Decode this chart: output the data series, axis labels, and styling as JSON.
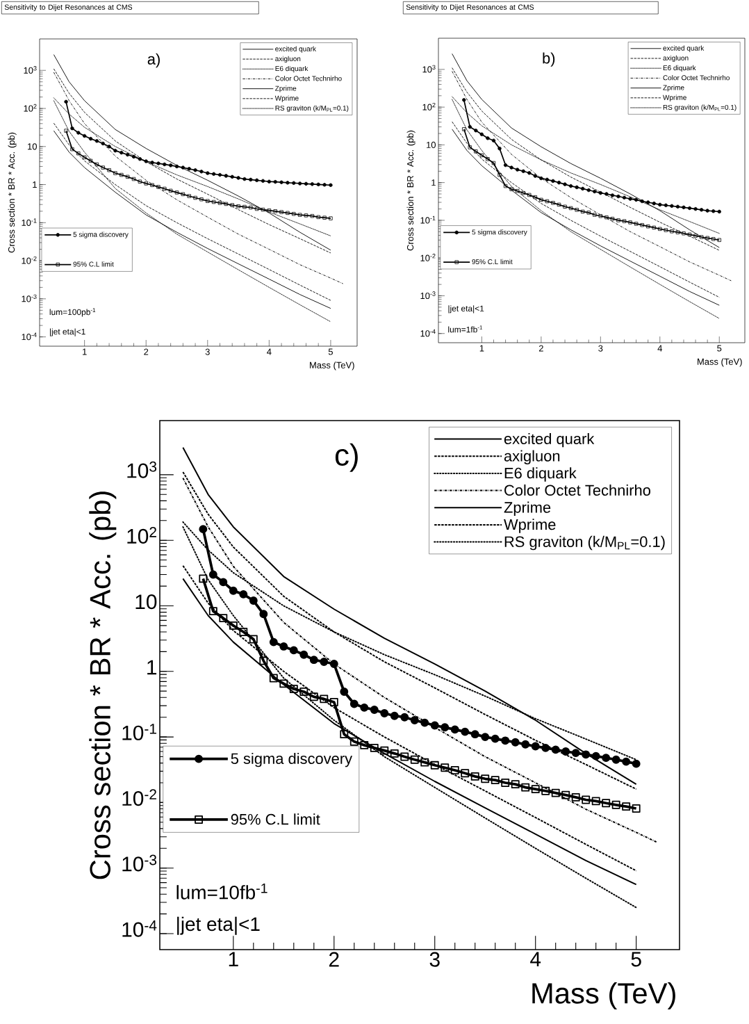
{
  "chart_data": [
    {
      "type": "line",
      "title": "Sensitivity to Dijet Resonances at CMS",
      "xlabel": "Mass (TeV)",
      "ylabel": "Cross section * BR * Acc. (pb)",
      "log": "y",
      "legend": "top right",
      "xlim": [
        0.27,
        5.43
      ],
      "ylim": [
        5.7e-05,
        6700
      ],
      "xticks": [
        1,
        2,
        3,
        4,
        5
      ],
      "yticks": [
        {
          "value": 0.0001,
          "label": "10$^{-4}$"
        },
        {
          "value": 0.001,
          "label": "10$^{-3}$"
        },
        {
          "value": 0.01,
          "label": "10$^{-2}$"
        },
        {
          "value": 0.1,
          "label": "10$^{-1}$"
        },
        1,
        10,
        {
          "value": 100,
          "label": "10$^{2}$"
        },
        {
          "value": 1000,
          "label": "10$^{3}$"
        }
      ],
      "annotations": [
        "a)",
        "lum=100pb$^{-1}$",
        "|jet eta|<1"
      ],
      "series": [
        {
          "name": "excited quark",
          "color": "#000000",
          "line_style": "solid",
          "marker": "none",
          "x": [
            0.5,
            0.75,
            1,
            1.5,
            2,
            2.5,
            3,
            3.5,
            4,
            4.5,
            5
          ],
          "values": [
            2600,
            500,
            160,
            28,
            8.9,
            3.2,
            1.3,
            0.5,
            0.18,
            0.056,
            0.019
          ]
        },
        {
          "name": "axigluon",
          "color": "#000000",
          "line_style": "dashed",
          "marker": "none",
          "x": [
            0.5,
            0.75,
            1,
            1.5,
            2,
            2.5,
            3,
            3.5,
            4,
            4.5,
            5
          ],
          "values": [
            1100,
            250,
            79,
            14,
            4.0,
            1.4,
            0.56,
            0.22,
            0.089,
            0.038,
            0.016
          ]
        },
        {
          "name": "E6 diquark",
          "color": "#000000",
          "line_style": "dotted",
          "marker": "none",
          "x": [
            0.5,
            0.75,
            1,
            1.5,
            2,
            2.5,
            3,
            3.5,
            4,
            4.5,
            5
          ],
          "values": [
            190,
            71,
            32,
            10,
            4.0,
            1.8,
            0.89,
            0.42,
            0.19,
            0.093,
            0.045
          ]
        },
        {
          "name": "Color Octet Technirho",
          "color": "#000000",
          "line_style": "dashdot",
          "marker": "none",
          "x": [
            0.5,
            0.75,
            1,
            1.5,
            2,
            2.5,
            3,
            3.5,
            4,
            4.5,
            5,
            5.2
          ],
          "values": [
            890,
            160,
            40,
            5.6,
            1.3,
            0.4,
            0.14,
            0.05,
            0.02,
            0.0079,
            0.0035,
            0.0025
          ]
        },
        {
          "name": "Zprime",
          "color": "#000000",
          "line_style": "solid",
          "marker": "none",
          "x": [
            0.5,
            0.75,
            1,
            1.5,
            2,
            2.5,
            3,
            3.5,
            4,
            4.5,
            5
          ],
          "values": [
            26,
            7.1,
            2.8,
            0.63,
            0.16,
            0.056,
            0.021,
            0.0083,
            0.0033,
            0.0013,
            0.00056
          ]
        },
        {
          "name": "Wprime",
          "color": "#000000",
          "line_style": "dashed",
          "marker": "none",
          "x": [
            0.5,
            0.75,
            1,
            1.5,
            2,
            2.5,
            3,
            3.5,
            4,
            4.5,
            5
          ],
          "values": [
            41,
            11,
            4.2,
            1.0,
            0.28,
            0.1,
            0.038,
            0.015,
            0.0059,
            0.0023,
            0.00091
          ]
        },
        {
          "name": "RS graviton (k/M$_{PL}$=0.1)",
          "color": "#000000",
          "line_style": "dotted",
          "marker": "none",
          "x": [
            0.5,
            0.75,
            1,
            1.5,
            2,
            2.5,
            3,
            3.5,
            4,
            4.5,
            5
          ],
          "values": [
            160,
            25,
            7.1,
            0.79,
            0.18,
            0.05,
            0.017,
            0.0058,
            0.002,
            0.0007,
            0.00025
          ]
        },
        {
          "name": "5 sigma discovery",
          "color": "#000000",
          "line_style": "solid",
          "marker": "circle",
          "x": [
            0.7,
            0.8,
            0.9,
            1.0,
            1.1,
            1.2,
            1.3,
            1.4,
            1.5,
            1.6,
            1.7,
            1.8,
            1.9,
            2.0,
            2.1,
            2.2,
            2.3,
            2.4,
            2.5,
            2.6,
            2.7,
            2.8,
            2.9,
            3.0,
            3.1,
            3.2,
            3.3,
            3.4,
            3.5,
            3.6,
            3.7,
            3.8,
            3.9,
            4.0,
            4.1,
            4.2,
            4.3,
            4.4,
            4.5,
            4.6,
            4.7,
            4.8,
            4.9,
            5.0
          ],
          "values": [
            150,
            30,
            23,
            19,
            16,
            14,
            12,
            10,
            7.8,
            6.9,
            6.1,
            5.4,
            4.7,
            4.1,
            3.8,
            3.6,
            3.4,
            3.2,
            3.0,
            2.8,
            2.6,
            2.4,
            2.2,
            2.0,
            1.9,
            1.8,
            1.7,
            1.6,
            1.5,
            1.4,
            1.35,
            1.3,
            1.25,
            1.2,
            1.18,
            1.15,
            1.12,
            1.1,
            1.07,
            1.05,
            1.03,
            1.01,
            0.99,
            0.97
          ]
        },
        {
          "name": "95% C.L limit",
          "color": "#000000",
          "line_style": "solid",
          "marker": "square",
          "x": [
            0.7,
            0.8,
            0.9,
            1.0,
            1.1,
            1.2,
            1.3,
            1.4,
            1.5,
            1.6,
            1.7,
            1.8,
            1.9,
            2.0,
            2.1,
            2.2,
            2.3,
            2.4,
            2.5,
            2.6,
            2.7,
            2.8,
            2.9,
            3.0,
            3.1,
            3.2,
            3.3,
            3.4,
            3.5,
            3.6,
            3.7,
            3.8,
            3.9,
            4.0,
            4.1,
            4.2,
            4.3,
            4.4,
            4.5,
            4.6,
            4.7,
            4.8,
            4.9,
            5.0
          ],
          "values": [
            26,
            8.5,
            6.6,
            5.2,
            4.2,
            3.4,
            2.8,
            2.4,
            2.0,
            1.8,
            1.6,
            1.4,
            1.2,
            1.07,
            0.97,
            0.87,
            0.78,
            0.69,
            0.62,
            0.56,
            0.5,
            0.45,
            0.41,
            0.37,
            0.35,
            0.33,
            0.31,
            0.29,
            0.27,
            0.26,
            0.25,
            0.23,
            0.22,
            0.21,
            0.2,
            0.19,
            0.18,
            0.17,
            0.16,
            0.155,
            0.15,
            0.14,
            0.135,
            0.13
          ]
        }
      ]
    },
    {
      "type": "line",
      "title": "Sensitivity to Dijet Resonances at CMS",
      "xlabel": "Mass (TeV)",
      "ylabel": "Cross section * BR * Acc. (pb)",
      "log": "y",
      "legend": "top right",
      "xlim": [
        0.27,
        5.43
      ],
      "ylim": [
        5.7e-05,
        6700
      ],
      "xticks": [
        1,
        2,
        3,
        4,
        5
      ],
      "yticks": [
        {
          "value": 0.0001,
          "label": "10$^{-4}$"
        },
        {
          "value": 0.001,
          "label": "10$^{-3}$"
        },
        {
          "value": 0.01,
          "label": "10$^{-2}$"
        },
        {
          "value": 0.1,
          "label": "10$^{-1}$"
        },
        1,
        10,
        {
          "value": 100,
          "label": "10$^{2}$"
        },
        {
          "value": 1000,
          "label": "10$^{3}$"
        }
      ],
      "annotations": [
        "b)",
        "|jet eta|<1",
        "lum=1fb$^{-1}$"
      ],
      "series": [
        {
          "name": "excited quark",
          "color": "#000000",
          "line_style": "solid",
          "marker": "none",
          "x": [
            0.5,
            0.75,
            1,
            1.5,
            2,
            2.5,
            3,
            3.5,
            4,
            4.5,
            5
          ],
          "values": [
            2600,
            500,
            160,
            28,
            8.9,
            3.2,
            1.3,
            0.5,
            0.18,
            0.056,
            0.019
          ]
        },
        {
          "name": "axigluon",
          "color": "#000000",
          "line_style": "dashed",
          "marker": "none",
          "x": [
            0.5,
            0.75,
            1,
            1.5,
            2,
            2.5,
            3,
            3.5,
            4,
            4.5,
            5
          ],
          "values": [
            1100,
            250,
            79,
            14,
            4.0,
            1.4,
            0.56,
            0.22,
            0.089,
            0.038,
            0.016
          ]
        },
        {
          "name": "E6 diquark",
          "color": "#000000",
          "line_style": "dotted",
          "marker": "none",
          "x": [
            0.5,
            0.75,
            1,
            1.5,
            2,
            2.5,
            3,
            3.5,
            4,
            4.5,
            5
          ],
          "values": [
            190,
            71,
            32,
            10,
            4.0,
            1.8,
            0.89,
            0.42,
            0.19,
            0.093,
            0.045
          ]
        },
        {
          "name": "Color Octet Technirho",
          "color": "#000000",
          "line_style": "dashdot",
          "marker": "none",
          "x": [
            0.5,
            0.75,
            1,
            1.5,
            2,
            2.5,
            3,
            3.5,
            4,
            4.5,
            5,
            5.2
          ],
          "values": [
            890,
            160,
            40,
            5.6,
            1.3,
            0.4,
            0.14,
            0.05,
            0.02,
            0.0079,
            0.0035,
            0.0025
          ]
        },
        {
          "name": "Zprime",
          "color": "#000000",
          "line_style": "solid",
          "marker": "none",
          "x": [
            0.5,
            0.75,
            1,
            1.5,
            2,
            2.5,
            3,
            3.5,
            4,
            4.5,
            5
          ],
          "values": [
            26,
            7.1,
            2.8,
            0.63,
            0.16,
            0.056,
            0.021,
            0.0083,
            0.0033,
            0.0013,
            0.00056
          ]
        },
        {
          "name": "Wprime",
          "color": "#000000",
          "line_style": "dashed",
          "marker": "none",
          "x": [
            0.5,
            0.75,
            1,
            1.5,
            2,
            2.5,
            3,
            3.5,
            4,
            4.5,
            5
          ],
          "values": [
            41,
            11,
            4.2,
            1.0,
            0.28,
            0.1,
            0.038,
            0.015,
            0.0059,
            0.0023,
            0.00091
          ]
        },
        {
          "name": "RS graviton (k/M$_{PL}$=0.1)",
          "color": "#000000",
          "line_style": "dotted",
          "marker": "none",
          "x": [
            0.5,
            0.75,
            1,
            1.5,
            2,
            2.5,
            3,
            3.5,
            4,
            4.5,
            5
          ],
          "values": [
            160,
            25,
            7.1,
            0.79,
            0.18,
            0.05,
            0.017,
            0.0058,
            0.002,
            0.0007,
            0.00025
          ]
        },
        {
          "name": "5 sigma discovery",
          "color": "#000000",
          "line_style": "solid",
          "marker": "circle",
          "x": [
            0.7,
            0.8,
            0.9,
            1.0,
            1.1,
            1.2,
            1.3,
            1.4,
            1.5,
            1.6,
            1.7,
            1.8,
            1.9,
            2.0,
            2.1,
            2.2,
            2.3,
            2.4,
            2.5,
            2.6,
            2.7,
            2.8,
            2.9,
            3.0,
            3.1,
            3.2,
            3.3,
            3.4,
            3.5,
            3.6,
            3.7,
            3.8,
            3.9,
            4.0,
            4.1,
            4.2,
            4.3,
            4.4,
            4.5,
            4.6,
            4.7,
            4.8,
            4.9,
            5.0
          ],
          "values": [
            155,
            30,
            24,
            19,
            15,
            13,
            8,
            2.9,
            2.5,
            2.2,
            2.0,
            1.8,
            1.5,
            1.3,
            1.2,
            1.1,
            1.0,
            0.9,
            0.81,
            0.75,
            0.69,
            0.63,
            0.58,
            0.53,
            0.5,
            0.46,
            0.43,
            0.4,
            0.37,
            0.35,
            0.32,
            0.3,
            0.28,
            0.26,
            0.25,
            0.24,
            0.23,
            0.22,
            0.21,
            0.2,
            0.19,
            0.18,
            0.175,
            0.17
          ]
        },
        {
          "name": "95% C.L limit",
          "color": "#000000",
          "line_style": "solid",
          "marker": "square",
          "x": [
            0.7,
            0.8,
            0.9,
            1.0,
            1.1,
            1.2,
            1.3,
            1.4,
            1.5,
            1.6,
            1.7,
            1.8,
            1.9,
            2.0,
            2.1,
            2.2,
            2.3,
            2.4,
            2.5,
            2.6,
            2.7,
            2.8,
            2.9,
            3.0,
            3.1,
            3.2,
            3.3,
            3.4,
            3.5,
            3.6,
            3.7,
            3.8,
            3.9,
            4.0,
            4.1,
            4.2,
            4.3,
            4.4,
            4.5,
            4.6,
            4.7,
            4.8,
            4.9,
            5.0
          ],
          "values": [
            26,
            8.6,
            6.7,
            5.3,
            4.2,
            3.3,
            1.6,
            0.81,
            0.67,
            0.6,
            0.53,
            0.47,
            0.41,
            0.35,
            0.32,
            0.29,
            0.26,
            0.23,
            0.21,
            0.19,
            0.17,
            0.16,
            0.14,
            0.13,
            0.12,
            0.11,
            0.1,
            0.095,
            0.088,
            0.081,
            0.075,
            0.069,
            0.064,
            0.059,
            0.055,
            0.051,
            0.048,
            0.045,
            0.042,
            0.039,
            0.036,
            0.034,
            0.032,
            0.03
          ]
        }
      ]
    },
    {
      "type": "line",
      "xlabel": "Mass (TeV)",
      "ylabel": "Cross section * BR * Acc. (pb)",
      "log": "y",
      "legend": "top right",
      "xlim": [
        0.27,
        5.43
      ],
      "ylim": [
        5.7e-05,
        6700
      ],
      "xticks": [
        1,
        2,
        3,
        4,
        5
      ],
      "yticks": [
        {
          "value": 0.0001,
          "label": "10$^{-4}$"
        },
        {
          "value": 0.001,
          "label": "10$^{-3}$"
        },
        {
          "value": 0.01,
          "label": "10$^{-2}$"
        },
        {
          "value": 0.1,
          "label": "10$^{-1}$"
        },
        1,
        10,
        {
          "value": 100,
          "label": "10$^{2}$"
        },
        {
          "value": 1000,
          "label": "10$^{3}$"
        }
      ],
      "annotations": [
        "c)",
        "lum=10fb$^{-1}$",
        "|jet eta|<1"
      ],
      "series": [
        {
          "name": "excited quark",
          "color": "#000000",
          "line_style": "solid",
          "marker": "none",
          "x": [
            0.5,
            0.75,
            1,
            1.5,
            2,
            2.5,
            3,
            3.5,
            4,
            4.5,
            5
          ],
          "values": [
            2600,
            500,
            160,
            28,
            8.9,
            3.2,
            1.3,
            0.5,
            0.18,
            0.056,
            0.019
          ]
        },
        {
          "name": "axigluon",
          "color": "#000000",
          "line_style": "dashed",
          "marker": "none",
          "x": [
            0.5,
            0.75,
            1,
            1.5,
            2,
            2.5,
            3,
            3.5,
            4,
            4.5,
            5
          ],
          "values": [
            1100,
            250,
            79,
            14,
            4.0,
            1.4,
            0.56,
            0.22,
            0.089,
            0.038,
            0.016
          ]
        },
        {
          "name": "E6 diquark",
          "color": "#000000",
          "line_style": "dotted",
          "marker": "none",
          "x": [
            0.5,
            0.75,
            1,
            1.5,
            2,
            2.5,
            3,
            3.5,
            4,
            4.5,
            5
          ],
          "values": [
            190,
            71,
            32,
            10,
            4.0,
            1.8,
            0.89,
            0.42,
            0.19,
            0.093,
            0.045
          ]
        },
        {
          "name": "Color Octet Technirho",
          "color": "#000000",
          "line_style": "dashdot",
          "marker": "none",
          "x": [
            0.5,
            0.75,
            1,
            1.5,
            2,
            2.5,
            3,
            3.5,
            4,
            4.5,
            5,
            5.2
          ],
          "values": [
            890,
            160,
            40,
            5.6,
            1.3,
            0.4,
            0.14,
            0.05,
            0.02,
            0.0079,
            0.0035,
            0.0025
          ]
        },
        {
          "name": "Zprime",
          "color": "#000000",
          "line_style": "solid",
          "marker": "none",
          "x": [
            0.5,
            0.75,
            1,
            1.5,
            2,
            2.5,
            3,
            3.5,
            4,
            4.5,
            5
          ],
          "values": [
            26,
            7.1,
            2.8,
            0.63,
            0.16,
            0.056,
            0.021,
            0.0083,
            0.0033,
            0.0013,
            0.00056
          ]
        },
        {
          "name": "Wprime",
          "color": "#000000",
          "line_style": "dashed",
          "marker": "none",
          "x": [
            0.5,
            0.75,
            1,
            1.5,
            2,
            2.5,
            3,
            3.5,
            4,
            4.5,
            5
          ],
          "values": [
            41,
            11,
            4.2,
            1.0,
            0.28,
            0.1,
            0.038,
            0.015,
            0.0059,
            0.0023,
            0.00091
          ]
        },
        {
          "name": "RS graviton (k/M$_{PL}$=0.1)",
          "color": "#000000",
          "line_style": "dotted",
          "marker": "none",
          "x": [
            0.5,
            0.75,
            1,
            1.5,
            2,
            2.5,
            3,
            3.5,
            4,
            4.5,
            5
          ],
          "values": [
            160,
            25,
            7.1,
            0.79,
            0.18,
            0.05,
            0.017,
            0.0058,
            0.002,
            0.0007,
            0.00025
          ]
        },
        {
          "name": "5 sigma discovery",
          "color": "#000000",
          "line_style": "solid",
          "marker": "circle",
          "x": [
            0.7,
            0.8,
            0.9,
            1.0,
            1.1,
            1.2,
            1.3,
            1.4,
            1.5,
            1.6,
            1.7,
            1.8,
            1.9,
            2.0,
            2.1,
            2.2,
            2.3,
            2.4,
            2.5,
            2.6,
            2.7,
            2.8,
            2.9,
            3.0,
            3.1,
            3.2,
            3.3,
            3.4,
            3.5,
            3.6,
            3.7,
            3.8,
            3.9,
            4.0,
            4.1,
            4.2,
            4.3,
            4.4,
            4.5,
            4.6,
            4.7,
            4.8,
            4.9,
            5.0
          ],
          "values": [
            148,
            30,
            23,
            17,
            15,
            12,
            7.5,
            2.8,
            2.4,
            2.1,
            1.8,
            1.5,
            1.4,
            1.3,
            0.49,
            0.32,
            0.28,
            0.26,
            0.23,
            0.21,
            0.2,
            0.18,
            0.165,
            0.15,
            0.14,
            0.13,
            0.12,
            0.11,
            0.1,
            0.094,
            0.088,
            0.083,
            0.077,
            0.072,
            0.068,
            0.064,
            0.06,
            0.057,
            0.054,
            0.051,
            0.048,
            0.045,
            0.042,
            0.039
          ]
        },
        {
          "name": "95% C.L limit",
          "color": "#000000",
          "line_style": "solid",
          "marker": "square",
          "x": [
            0.7,
            0.8,
            0.9,
            1.0,
            1.1,
            1.2,
            1.3,
            1.4,
            1.5,
            1.6,
            1.7,
            1.8,
            1.9,
            2.0,
            2.1,
            2.2,
            2.3,
            2.4,
            2.5,
            2.6,
            2.7,
            2.8,
            2.9,
            3.0,
            3.1,
            3.2,
            3.3,
            3.4,
            3.5,
            3.6,
            3.7,
            3.8,
            3.9,
            4.0,
            4.1,
            4.2,
            4.3,
            4.4,
            4.5,
            4.6,
            4.7,
            4.8,
            4.9,
            5.0
          ],
          "values": [
            26,
            8.3,
            6.5,
            5.0,
            4.0,
            3.1,
            1.45,
            0.79,
            0.65,
            0.54,
            0.49,
            0.41,
            0.38,
            0.34,
            0.11,
            0.085,
            0.075,
            0.068,
            0.062,
            0.056,
            0.05,
            0.045,
            0.041,
            0.037,
            0.034,
            0.031,
            0.028,
            0.025,
            0.023,
            0.022,
            0.02,
            0.019,
            0.017,
            0.016,
            0.015,
            0.014,
            0.013,
            0.012,
            0.011,
            0.0105,
            0.0098,
            0.0092,
            0.0087,
            0.0081
          ]
        }
      ]
    }
  ]
}
